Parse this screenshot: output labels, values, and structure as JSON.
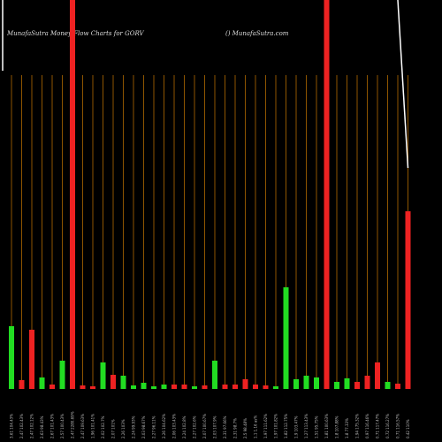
{
  "chart_data": {
    "type": "bar",
    "title": "MunafaSutra  Money Flow  Charts for GORV",
    "subtitle": "() MunafaSutra.com",
    "categories": [
      "3.61 104.43%",
      "2.47 102.43%",
      "2.47 102.12%",
      "2.63 98.43%",
      "2.67 101.43%",
      "2.57 100.43%",
      "2.47 2280.69%",
      "2.47 109.63%",
      "1.96 101.41%",
      "2.02 102.7%",
      "2.07 101%",
      "2.26 103%",
      "2.24 99.93%",
      "2.03 98.67%",
      "2.27 96.11%",
      "2.26 104.62%",
      "2.06 103.43%",
      "2.24 102.8%",
      "2.27 102.6%",
      "2.07 100.67%",
      "2.03 107.9%",
      "2.31 97.66%",
      "2.31 98.7%",
      "2.5 98.48%",
      "1.1 1.16 as%",
      "1.97 111.62%",
      "1.97 101.82%",
      "1.82 112.75%",
      "1.9 103.47%",
      "1.27 113.43%",
      "1.51 95.75%",
      "1.81 100.63%",
      "1.8 107.88%",
      "1.8 77.33%",
      "1.94 175.32%",
      "0.97 116.46%",
      "0.71 117.47%",
      "0.72 116.27%",
      "0.71 116.57%",
      "0.42 110%"
    ],
    "values": [
      71,
      10,
      67,
      13,
      5,
      32,
      440,
      4,
      3,
      30,
      16,
      15,
      4,
      7,
      3,
      5,
      5,
      5,
      3,
      4,
      32,
      5,
      5,
      11,
      5,
      4,
      3,
      115,
      11,
      15,
      13,
      440,
      8,
      12,
      8,
      15,
      30,
      8,
      6,
      201
    ],
    "colors": [
      "#22dd22",
      "#ee2222",
      "#ee2222",
      "#22dd22",
      "#ee2222",
      "#22dd22",
      "#ee2222",
      "#ee2222",
      "#ee2222",
      "#22dd22",
      "#ee2222",
      "#22dd22",
      "#22dd22",
      "#22dd22",
      "#22dd22",
      "#22dd22",
      "#ee2222",
      "#ee2222",
      "#22dd22",
      "#ee2222",
      "#22dd22",
      "#ee2222",
      "#ee2222",
      "#ee2222",
      "#ee2222",
      "#ee2222",
      "#22dd22",
      "#22dd22",
      "#22dd22",
      "#22dd22",
      "#22dd22",
      "#ee2222",
      "#22dd22",
      "#22dd22",
      "#ee2222",
      "#ee2222",
      "#ee2222",
      "#22dd22",
      "#ee2222",
      "#ee2222"
    ],
    "line": {
      "color": "#ffffff",
      "values": [
        null,
        null,
        null,
        null,
        null,
        null,
        null,
        null,
        null,
        null,
        null,
        null,
        null,
        null,
        null,
        null,
        null,
        null,
        null,
        null,
        null,
        null,
        null,
        null,
        null,
        null,
        null,
        null,
        null,
        null,
        null,
        null,
        null,
        null,
        null,
        null,
        null,
        null,
        440,
        250
      ]
    },
    "grid_color": "#b36b00",
    "ylim": [
      0,
      440
    ]
  }
}
